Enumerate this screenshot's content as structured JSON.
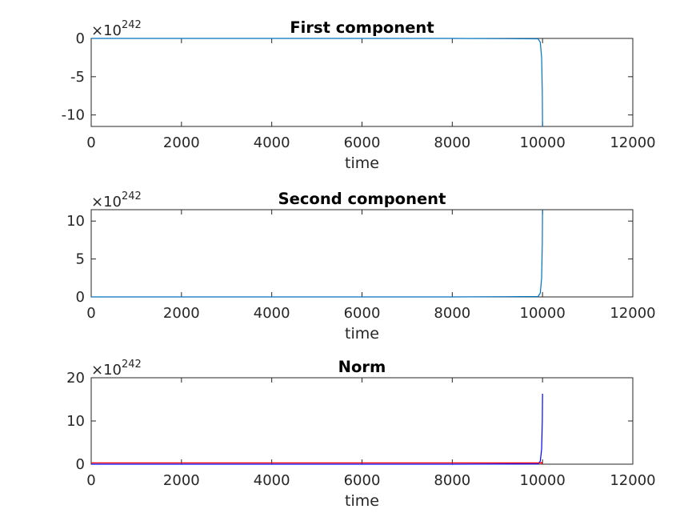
{
  "chart_data": [
    {
      "type": "line",
      "title": "First component",
      "xlabel": "time",
      "ylabel": "",
      "xlim": [
        0,
        12000
      ],
      "ylim": [
        -11.5,
        0
      ],
      "xticks": [
        0,
        2000,
        4000,
        6000,
        8000,
        10000,
        12000
      ],
      "yticks": [
        -10,
        -5,
        0
      ],
      "exponent_base": "×10",
      "exponent_power": "242",
      "series": [
        {
          "color": "#0072BD",
          "x": [
            0,
            2000,
            4000,
            6000,
            8000,
            9900,
            9950,
            9980,
            9995,
            10000
          ],
          "y": [
            0,
            0,
            0,
            0,
            0,
            -0.05,
            -0.5,
            -2.5,
            -7.0,
            -11.5
          ]
        }
      ]
    },
    {
      "type": "line",
      "title": "Second component",
      "xlabel": "time",
      "ylabel": "",
      "xlim": [
        0,
        12000
      ],
      "ylim": [
        0,
        11.5
      ],
      "xticks": [
        0,
        2000,
        4000,
        6000,
        8000,
        10000,
        12000
      ],
      "yticks": [
        0,
        5,
        10
      ],
      "exponent_base": "×10",
      "exponent_power": "242",
      "series": [
        {
          "color": "#0072BD",
          "x": [
            0,
            2000,
            4000,
            6000,
            8000,
            9900,
            9950,
            9980,
            9995,
            10000
          ],
          "y": [
            0,
            0,
            0,
            0,
            0,
            0.05,
            0.5,
            2.5,
            7.0,
            11.5
          ]
        }
      ]
    },
    {
      "type": "line",
      "title": "Norm",
      "xlabel": "time",
      "ylabel": "",
      "xlim": [
        0,
        12000
      ],
      "ylim": [
        0,
        20
      ],
      "xticks": [
        0,
        2000,
        4000,
        6000,
        8000,
        10000,
        12000
      ],
      "yticks": [
        0,
        10,
        20
      ],
      "exponent_base": "×10",
      "exponent_power": "242",
      "series": [
        {
          "color": "#0000FF",
          "x": [
            0,
            2000,
            4000,
            6000,
            8000,
            9900,
            9950,
            9980,
            9995,
            10000
          ],
          "y": [
            0,
            0,
            0,
            0,
            0,
            0.07,
            0.7,
            3.5,
            9.9,
            16.3
          ]
        },
        {
          "color": "#FF0000",
          "x": [
            0,
            2000,
            4000,
            6000,
            8000,
            9960,
            9980,
            10000
          ],
          "y": [
            0.3,
            0.3,
            0.3,
            0.3,
            0.3,
            0.3,
            0.4,
            0
          ]
        }
      ]
    }
  ]
}
